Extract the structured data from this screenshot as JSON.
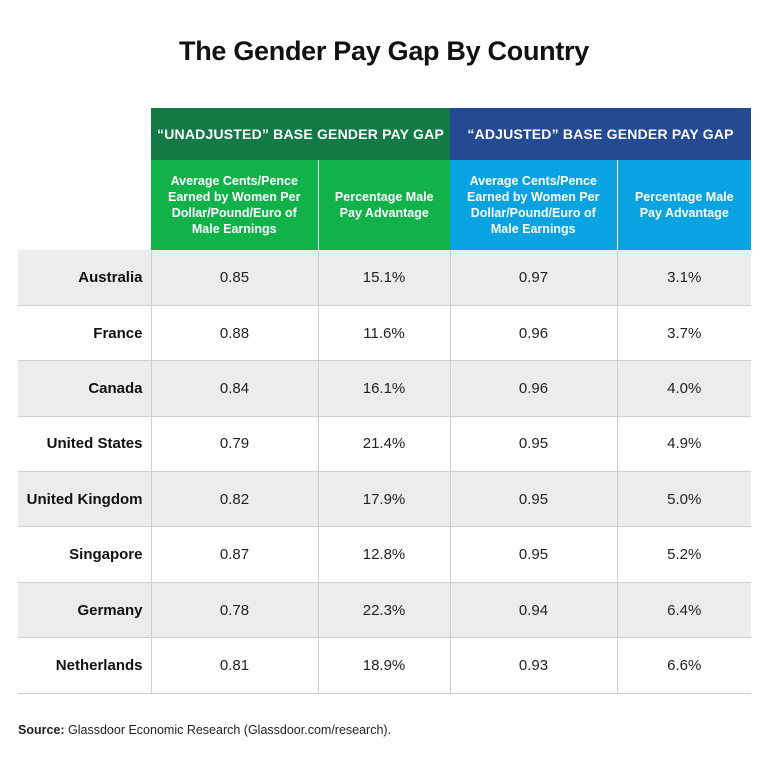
{
  "title": "The Gender Pay Gap By Country",
  "colors": {
    "unadjusted_group": "#137a45",
    "unadjusted_sub": "#12b24a",
    "adjusted_group": "#234a92",
    "adjusted_sub": "#0aa3e2",
    "row_shade": "#ececec"
  },
  "chart_data": {
    "type": "table",
    "title": "The Gender Pay Gap By Country",
    "groups": [
      {
        "label": "“UNADJUSTED” BASE GENDER PAY GAP",
        "columns": [
          "Average Cents/Pence Earned by Women Per Dollar/Pound/Euro of Male Earnings",
          "Percentage Male Pay Advantage"
        ]
      },
      {
        "label": "“ADJUSTED” BASE GENDER PAY GAP",
        "columns": [
          "Average Cents/Pence Earned by Women Per Dollar/Pound/Euro of Male Earnings",
          "Percentage Male Pay Advantage"
        ]
      }
    ],
    "rows": [
      {
        "country": "Australia",
        "unadj_cents": "0.85",
        "unadj_pct": "15.1%",
        "adj_cents": "0.97",
        "adj_pct": "3.1%"
      },
      {
        "country": "France",
        "unadj_cents": "0.88",
        "unadj_pct": "11.6%",
        "adj_cents": "0.96",
        "adj_pct": "3.7%"
      },
      {
        "country": "Canada",
        "unadj_cents": "0.84",
        "unadj_pct": "16.1%",
        "adj_cents": "0.96",
        "adj_pct": "4.0%"
      },
      {
        "country": "United States",
        "unadj_cents": "0.79",
        "unadj_pct": "21.4%",
        "adj_cents": "0.95",
        "adj_pct": "4.9%"
      },
      {
        "country": "United Kingdom",
        "unadj_cents": "0.82",
        "unadj_pct": "17.9%",
        "adj_cents": "0.95",
        "adj_pct": "5.0%"
      },
      {
        "country": "Singapore",
        "unadj_cents": "0.87",
        "unadj_pct": "12.8%",
        "adj_cents": "0.95",
        "adj_pct": "5.2%"
      },
      {
        "country": "Germany",
        "unadj_cents": "0.78",
        "unadj_pct": "22.3%",
        "adj_cents": "0.94",
        "adj_pct": "6.4%"
      },
      {
        "country": "Netherlands",
        "unadj_cents": "0.81",
        "unadj_pct": "18.9%",
        "adj_cents": "0.93",
        "adj_pct": "6.6%"
      }
    ]
  },
  "source": {
    "label": "Source:",
    "text": " Glassdoor Economic Research (Glassdoor.com/research)."
  }
}
